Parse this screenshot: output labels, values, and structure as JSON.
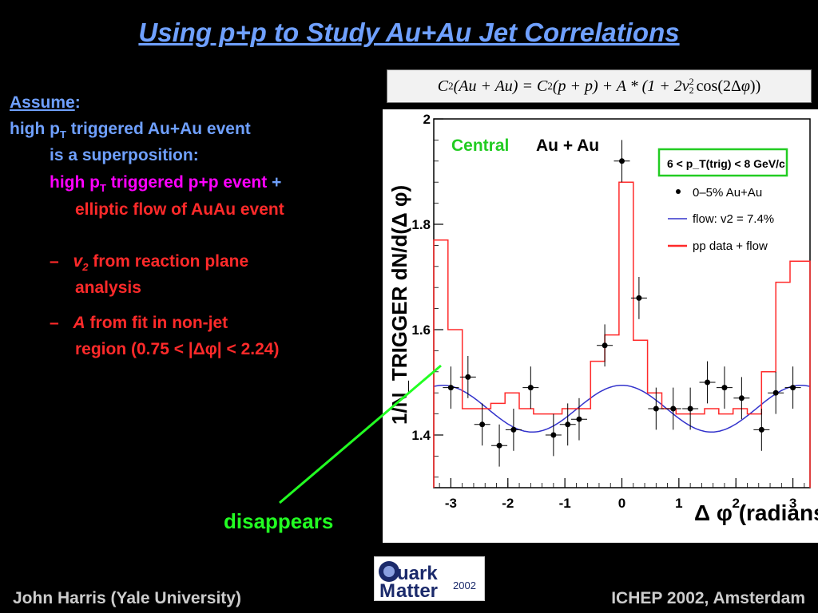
{
  "title": "Using p+p to Study Au+Au Jet Correlations",
  "formula": "C2(Au+Au) = C2(p+p) + A*(1+2v2^2 cos(2Δφ))",
  "left_text": {
    "assume": "Assume",
    "colon": ":",
    "line1_pre": "high p",
    "line1_sub": "T",
    "line1_post": " triggered Au+Au event",
    "line2": "is a superposition:",
    "line3_pre": "high p",
    "line3_sub": "T",
    "line3_post": " triggered p+p event",
    "plus": " +",
    "line4": "elliptic flow of AuAu event",
    "b1_dash": "–",
    "b1_var": "v",
    "b1_sub": "2",
    "b1_text": " from reaction plane",
    "b1_text2": "analysis",
    "b2_dash": "–",
    "b2_var": "A",
    "b2_text": " from fit in non-jet",
    "b2_text2": "region (0.75 < |Δφ| < 2.24)"
  },
  "annotation": "disappears",
  "footer_left": "John Harris (Yale University)",
  "footer_right": "ICHEP 2002, Amsterdam",
  "logo": {
    "text1": "uark",
    "text2": "atter",
    "year": "2002",
    "q": "Q",
    "m": "M"
  },
  "colors": {
    "title": "#6fa0ff",
    "red": "#ff2a2a",
    "magenta": "#ff00ff",
    "green": "#22ff22",
    "flow": "#3333cc"
  },
  "chart_data": {
    "type": "scatter",
    "title_left": "Central",
    "title_right": "Au + Au",
    "legend_box": "6 < p_T(trig) < 8 GeV/c",
    "legend": [
      "0–5% Au+Au",
      "flow: v2 = 7.4%",
      "pp data + flow"
    ],
    "xlabel": "Δ φ (radians)",
    "ylabel": "1/N_TRIGGER dN/d(Δ φ)",
    "xlim": [
      -3.3,
      3.3
    ],
    "ylim": [
      1.3,
      2.0
    ],
    "xticks": [
      "-3",
      "-2",
      "-1",
      "0",
      "1",
      "2",
      "3"
    ],
    "yticks": [
      "1.4",
      "1.6",
      "1.8",
      "2"
    ],
    "series": [
      {
        "name": "0–5% Au+Au",
        "x": [
          -3.0,
          -2.7,
          -2.45,
          -2.15,
          -1.9,
          -1.6,
          -1.2,
          -0.95,
          -0.75,
          -0.3,
          0.0,
          0.3,
          0.6,
          0.9,
          1.2,
          1.5,
          1.8,
          2.1,
          2.45,
          2.7,
          3.0
        ],
        "y": [
          1.49,
          1.51,
          1.42,
          1.38,
          1.41,
          1.49,
          1.4,
          1.42,
          1.43,
          1.57,
          1.92,
          1.66,
          1.45,
          1.45,
          1.45,
          1.5,
          1.49,
          1.47,
          1.41,
          1.48,
          1.49
        ],
        "err": [
          0.04,
          0.04,
          0.04,
          0.04,
          0.04,
          0.04,
          0.04,
          0.04,
          0.04,
          0.04,
          0.04,
          0.04,
          0.04,
          0.04,
          0.04,
          0.04,
          0.04,
          0.04,
          0.04,
          0.04,
          0.04
        ]
      },
      {
        "name": "flow: v2 = 7.4%",
        "amplitude": 0.0153,
        "offset": 1.45
      },
      {
        "name": "pp data + flow",
        "edges": [
          -3.3,
          -3.05,
          -2.8,
          -2.55,
          -2.3,
          -2.05,
          -1.8,
          -1.55,
          -1.3,
          -1.05,
          -0.8,
          -0.55,
          -0.3,
          -0.05,
          0.2,
          0.45,
          0.7,
          0.95,
          1.2,
          1.45,
          1.7,
          1.95,
          2.2,
          2.45,
          2.7,
          2.95,
          3.3
        ],
        "values": [
          1.77,
          1.6,
          1.45,
          1.45,
          1.46,
          1.48,
          1.45,
          1.44,
          1.44,
          1.45,
          1.45,
          1.54,
          1.59,
          1.88,
          1.58,
          1.48,
          1.45,
          1.44,
          1.44,
          1.45,
          1.44,
          1.45,
          1.44,
          1.52,
          1.69,
          1.73
        ]
      }
    ]
  }
}
